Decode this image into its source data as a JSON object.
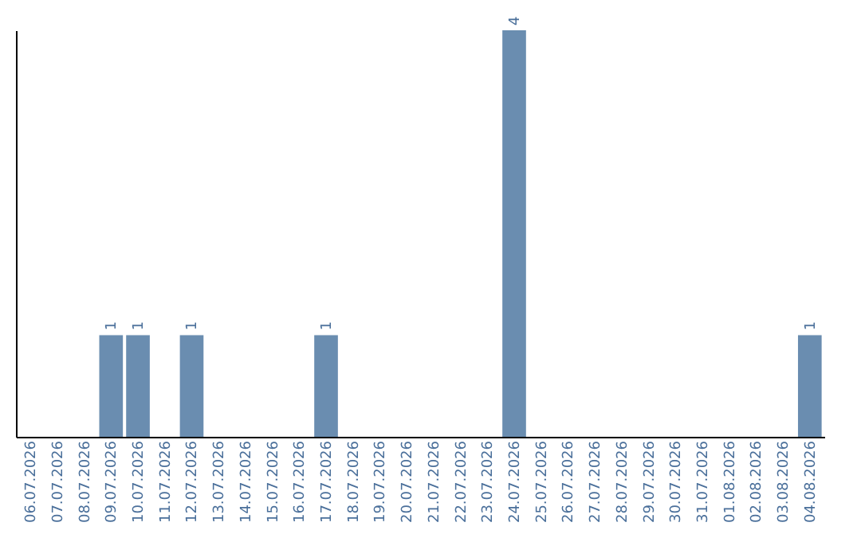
{
  "chart_data": {
    "type": "bar",
    "categories": [
      "06.07.2026",
      "07.07.2026",
      "08.07.2026",
      "09.07.2026",
      "10.07.2026",
      "11.07.2026",
      "12.07.2026",
      "13.07.2026",
      "14.07.2026",
      "15.07.2026",
      "16.07.2026",
      "17.07.2026",
      "18.07.2026",
      "19.07.2026",
      "20.07.2026",
      "21.07.2026",
      "22.07.2026",
      "23.07.2026",
      "24.07.2026",
      "25.07.2026",
      "26.07.2026",
      "27.07.2026",
      "28.07.2026",
      "29.07.2026",
      "30.07.2026",
      "31.07.2026",
      "01.08.2026",
      "02.08.2026",
      "03.08.2026",
      "04.08.2026"
    ],
    "values": [
      0,
      0,
      0,
      1,
      1,
      0,
      1,
      0,
      0,
      0,
      0,
      1,
      0,
      0,
      0,
      0,
      0,
      0,
      4,
      0,
      0,
      0,
      0,
      0,
      0,
      0,
      0,
      0,
      0,
      1
    ],
    "value_labels": [
      null,
      null,
      null,
      "1",
      "1",
      null,
      "1",
      null,
      null,
      null,
      null,
      "1",
      null,
      null,
      null,
      null,
      null,
      null,
      "4",
      null,
      null,
      null,
      null,
      null,
      null,
      null,
      null,
      null,
      null,
      "1"
    ],
    "color": "#6a8db0",
    "grid": false,
    "tick_labels": "x"
  }
}
